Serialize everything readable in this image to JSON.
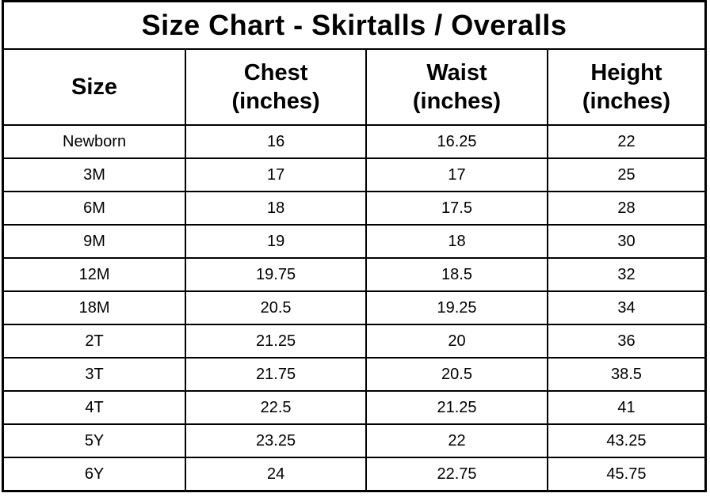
{
  "accent_colors": {
    "border": "#000000",
    "background": "#ffffff",
    "text": "#000000"
  },
  "table": {
    "title": "Size Chart - Skirtalls / Overalls",
    "headers": [
      {
        "label": "Size"
      },
      {
        "label": "Chest",
        "unit": "(inches)"
      },
      {
        "label": "Waist",
        "unit": "(inches)"
      },
      {
        "label": "Height",
        "unit": "(inches)"
      }
    ],
    "rows": [
      {
        "size": "Newborn",
        "chest": "16",
        "waist": "16.25",
        "height": "22"
      },
      {
        "size": "3M",
        "chest": "17",
        "waist": "17",
        "height": "25"
      },
      {
        "size": "6M",
        "chest": "18",
        "waist": "17.5",
        "height": "28"
      },
      {
        "size": "9M",
        "chest": "19",
        "waist": "18",
        "height": "30"
      },
      {
        "size": "12M",
        "chest": "19.75",
        "waist": "18.5",
        "height": "32"
      },
      {
        "size": "18M",
        "chest": "20.5",
        "waist": "19.25",
        "height": "34"
      },
      {
        "size": "2T",
        "chest": "21.25",
        "waist": "20",
        "height": "36"
      },
      {
        "size": "3T",
        "chest": "21.75",
        "waist": "20.5",
        "height": "38.5"
      },
      {
        "size": "4T",
        "chest": "22.5",
        "waist": "21.25",
        "height": "41"
      },
      {
        "size": "5Y",
        "chest": "23.25",
        "waist": "22",
        "height": "43.25"
      },
      {
        "size": "6Y",
        "chest": "24",
        "waist": "22.75",
        "height": "45.75"
      }
    ]
  },
  "chart_data": {
    "type": "table",
    "title": "Size Chart - Skirtalls / Overalls",
    "columns": [
      "Size",
      "Chest (inches)",
      "Waist (inches)",
      "Height (inches)"
    ],
    "rows": [
      [
        "Newborn",
        16,
        16.25,
        22
      ],
      [
        "3M",
        17,
        17,
        25
      ],
      [
        "6M",
        18,
        17.5,
        28
      ],
      [
        "9M",
        19,
        18,
        30
      ],
      [
        "12M",
        19.75,
        18.5,
        32
      ],
      [
        "18M",
        20.5,
        19.25,
        34
      ],
      [
        "2T",
        21.25,
        20,
        36
      ],
      [
        "3T",
        21.75,
        20.5,
        38.5
      ],
      [
        "4T",
        22.5,
        21.25,
        41
      ],
      [
        "5Y",
        23.25,
        22,
        43.25
      ],
      [
        "6Y",
        24,
        22.75,
        45.75
      ]
    ]
  }
}
